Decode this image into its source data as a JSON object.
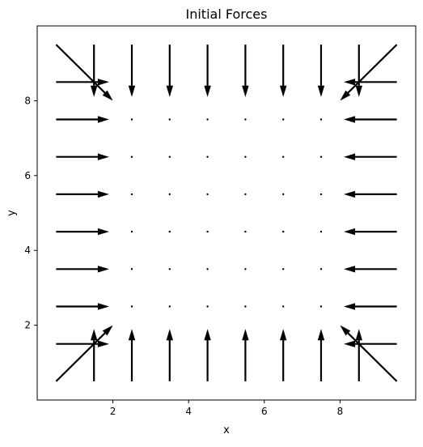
{
  "chart_data": {
    "type": "quiver",
    "title": "Initial Forces",
    "xlabel": "x",
    "ylabel": "y",
    "xlim": [
      0.0,
      10.0
    ],
    "ylim": [
      0.0,
      10.0
    ],
    "xticks": [
      2,
      4,
      6,
      8
    ],
    "yticks": [
      2,
      4,
      6,
      8
    ],
    "grid": false,
    "arrow_color": "#000000",
    "note": "Grid of points x,y in {0.5,...,9.5}; vectors below are in data units (arrow drawn from point to point+vector). Interior points have near-zero force (drawn as dots).",
    "vectors": [
      {
        "x": 0.5,
        "y": 9.5,
        "u": 1.5,
        "v": -1.5
      },
      {
        "x": 1.5,
        "y": 9.5,
        "u": 0.0,
        "v": -1.4
      },
      {
        "x": 2.5,
        "y": 9.5,
        "u": 0.0,
        "v": -1.4
      },
      {
        "x": 3.5,
        "y": 9.5,
        "u": 0.0,
        "v": -1.4
      },
      {
        "x": 4.5,
        "y": 9.5,
        "u": 0.0,
        "v": -1.4
      },
      {
        "x": 5.5,
        "y": 9.5,
        "u": 0.0,
        "v": -1.4
      },
      {
        "x": 6.5,
        "y": 9.5,
        "u": 0.0,
        "v": -1.4
      },
      {
        "x": 7.5,
        "y": 9.5,
        "u": 0.0,
        "v": -1.4
      },
      {
        "x": 8.5,
        "y": 9.5,
        "u": 0.0,
        "v": -1.4
      },
      {
        "x": 9.5,
        "y": 9.5,
        "u": -1.5,
        "v": -1.5
      },
      {
        "x": 0.5,
        "y": 8.5,
        "u": 1.4,
        "v": 0.0
      },
      {
        "x": 9.5,
        "y": 8.5,
        "u": -1.4,
        "v": 0.0
      },
      {
        "x": 0.5,
        "y": 7.5,
        "u": 1.4,
        "v": 0.0
      },
      {
        "x": 9.5,
        "y": 7.5,
        "u": -1.4,
        "v": 0.0
      },
      {
        "x": 0.5,
        "y": 6.5,
        "u": 1.4,
        "v": 0.0
      },
      {
        "x": 9.5,
        "y": 6.5,
        "u": -1.4,
        "v": 0.0
      },
      {
        "x": 0.5,
        "y": 5.5,
        "u": 1.4,
        "v": 0.0
      },
      {
        "x": 9.5,
        "y": 5.5,
        "u": -1.4,
        "v": 0.0
      },
      {
        "x": 0.5,
        "y": 4.5,
        "u": 1.4,
        "v": 0.0
      },
      {
        "x": 9.5,
        "y": 4.5,
        "u": -1.4,
        "v": 0.0
      },
      {
        "x": 0.5,
        "y": 3.5,
        "u": 1.4,
        "v": 0.0
      },
      {
        "x": 9.5,
        "y": 3.5,
        "u": -1.4,
        "v": 0.0
      },
      {
        "x": 0.5,
        "y": 2.5,
        "u": 1.4,
        "v": 0.0
      },
      {
        "x": 9.5,
        "y": 2.5,
        "u": -1.4,
        "v": 0.0
      },
      {
        "x": 0.5,
        "y": 1.5,
        "u": 1.4,
        "v": 0.0
      },
      {
        "x": 9.5,
        "y": 1.5,
        "u": -1.4,
        "v": 0.0
      },
      {
        "x": 0.5,
        "y": 0.5,
        "u": 1.5,
        "v": 1.5
      },
      {
        "x": 1.5,
        "y": 0.5,
        "u": 0.0,
        "v": 1.4
      },
      {
        "x": 2.5,
        "y": 0.5,
        "u": 0.0,
        "v": 1.4
      },
      {
        "x": 3.5,
        "y": 0.5,
        "u": 0.0,
        "v": 1.4
      },
      {
        "x": 4.5,
        "y": 0.5,
        "u": 0.0,
        "v": 1.4
      },
      {
        "x": 5.5,
        "y": 0.5,
        "u": 0.0,
        "v": 1.4
      },
      {
        "x": 6.5,
        "y": 0.5,
        "u": 0.0,
        "v": 1.4
      },
      {
        "x": 7.5,
        "y": 0.5,
        "u": 0.0,
        "v": 1.4
      },
      {
        "x": 8.5,
        "y": 0.5,
        "u": 0.0,
        "v": 1.4
      },
      {
        "x": 9.5,
        "y": 0.5,
        "u": -1.5,
        "v": 1.5
      }
    ],
    "zero_points_x": [
      2.5,
      3.5,
      4.5,
      5.5,
      6.5,
      7.5
    ],
    "zero_points_y": [
      2.5,
      3.5,
      4.5,
      5.5,
      6.5,
      7.5
    ]
  }
}
